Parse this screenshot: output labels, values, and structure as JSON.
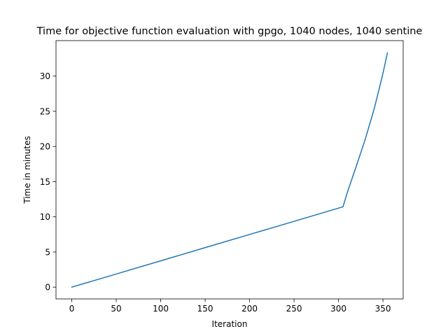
{
  "chart_data": {
    "type": "line",
    "title": "Time for objective function evaluation with gpgo, 1040 nodes, 1040 sentine",
    "xlabel": "Iteration",
    "ylabel": "Time in minutes",
    "xlim": [
      -17.75,
      372.75
    ],
    "ylim": [
      -1.67,
      35.05
    ],
    "x_ticks": [
      0,
      50,
      100,
      150,
      200,
      250,
      300,
      350
    ],
    "y_ticks": [
      0,
      5,
      10,
      15,
      20,
      25,
      30
    ],
    "grid": false,
    "legend": null,
    "series": [
      {
        "color": "#1f77b4",
        "x": [
          0,
          50,
          100,
          150,
          200,
          250,
          305,
          310,
          320,
          330,
          340,
          345,
          350,
          355
        ],
        "y": [
          0,
          1.87,
          3.74,
          5.62,
          7.49,
          9.36,
          11.42,
          13.5,
          17.2,
          21.0,
          25.3,
          27.8,
          30.4,
          33.3
        ]
      }
    ]
  }
}
